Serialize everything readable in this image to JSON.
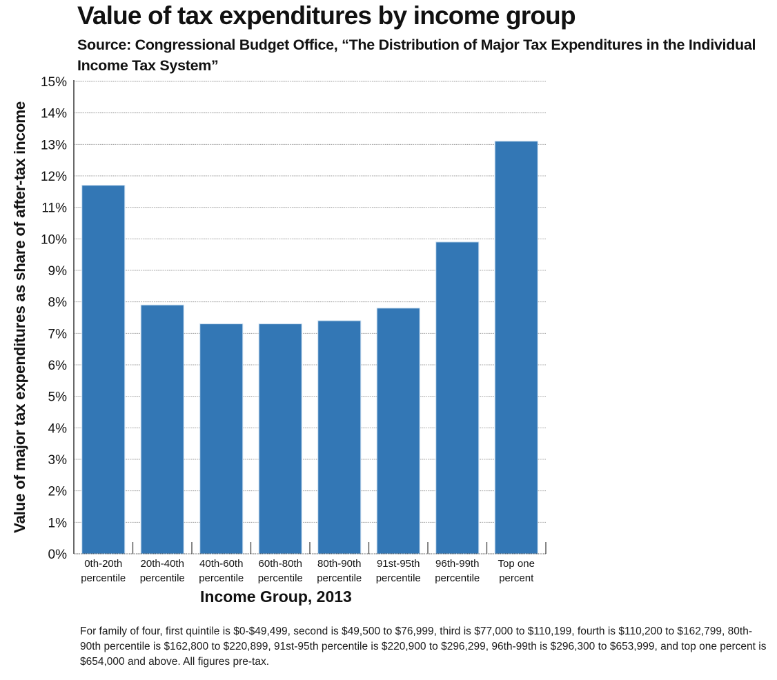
{
  "chart_data": {
    "type": "bar",
    "title": "Value of tax expenditures by income group",
    "subtitle": "Source: Congressional Budget Office, “The Distribution of Major Tax Expenditures in the Individual Income Tax System”",
    "xlabel": "Income Group, 2013",
    "ylabel": "Value of major tax expenditures as share of after-tax income",
    "categories": [
      [
        "0th-20th",
        "percentile"
      ],
      [
        "20th-40th",
        "percentile"
      ],
      [
        "40th-60th",
        "percentile"
      ],
      [
        "60th-80th",
        "percentile"
      ],
      [
        "80th-90th",
        "percentile"
      ],
      [
        "91st-95th",
        "percentile"
      ],
      [
        "96th-99th",
        "percentile"
      ],
      [
        "Top one",
        "percent"
      ]
    ],
    "values": [
      11.7,
      7.9,
      7.3,
      7.3,
      7.4,
      7.8,
      9.9,
      13.1
    ],
    "value_unit": "%",
    "ylim": [
      0,
      15
    ],
    "yticks": [
      0,
      1,
      2,
      3,
      4,
      5,
      6,
      7,
      8,
      9,
      10,
      11,
      12,
      13,
      14,
      15
    ],
    "ytick_labels": [
      "0%",
      "1%",
      "2%",
      "3%",
      "4%",
      "5%",
      "6%",
      "7%",
      "8%",
      "9%",
      "10%",
      "11%",
      "12%",
      "13%",
      "14%",
      "15%"
    ],
    "grid": true,
    "legend": "none",
    "bar_color": "#3377b5",
    "footnote": "For family of four, first quintile is $0-$49,499, second is $49,500 to $76,999, third is $77,000 to $110,199, fourth is $110,200 to $162,799, 80th-90th percentile is $162,800 to $220,899, 91st-95th percentile is $220,900 to $296,299, 96th-99th is $296,300 to $653,999, and top one percent is $654,000 and above. All figures pre-tax."
  }
}
